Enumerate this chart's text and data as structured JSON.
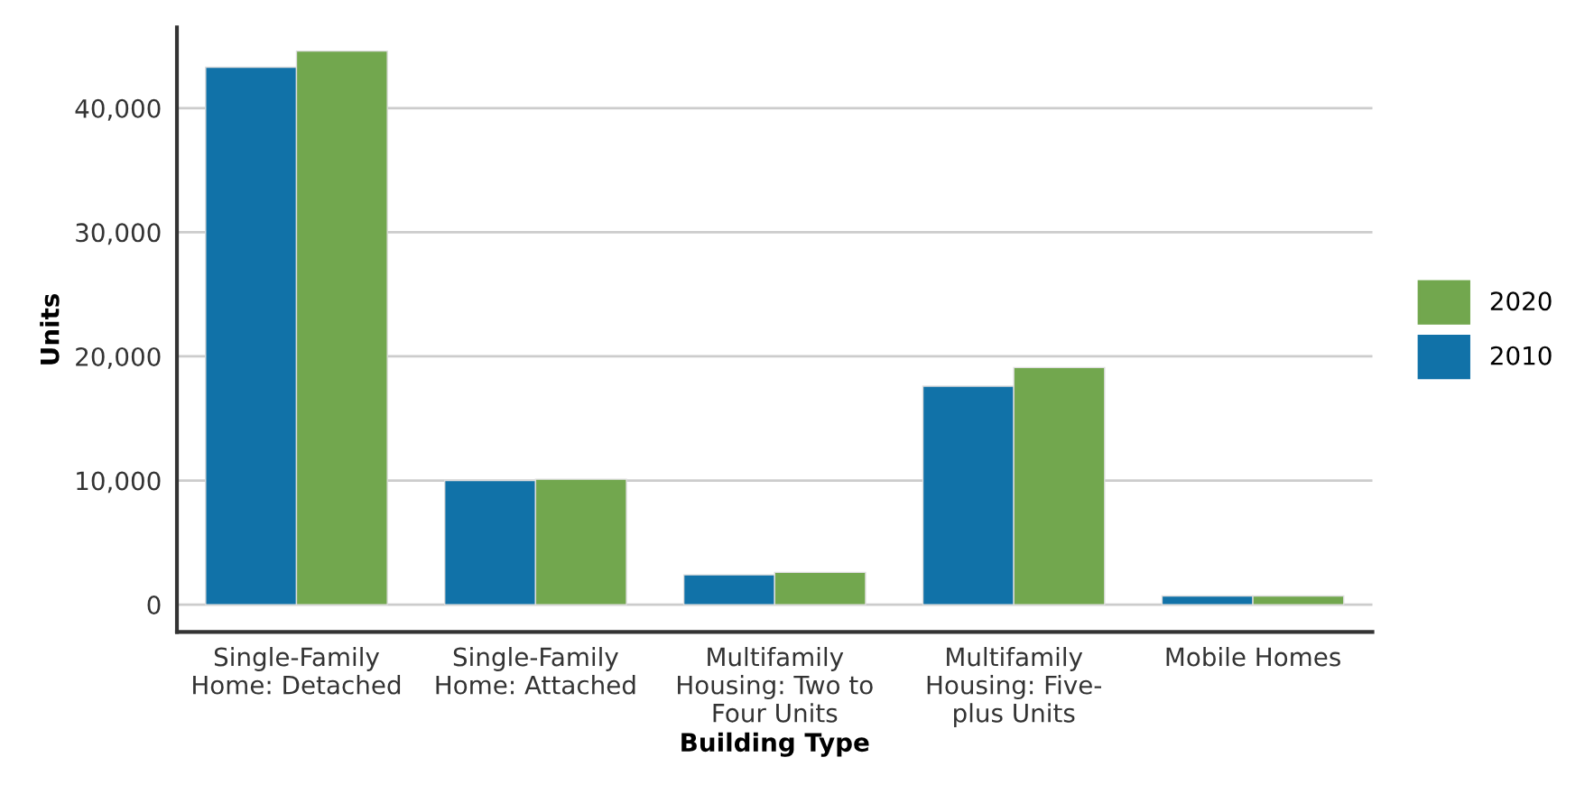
{
  "chart_data": {
    "type": "bar",
    "xlabel": "Building Type",
    "ylabel": "Units",
    "categories": [
      "Single-Family\nHome: Detached",
      "Single-Family\nHome: Attached",
      "Multifamily\nHousing: Two to\nFour Units",
      "Multifamily\nHousing: Five-\nplus Units",
      "Mobile Homes"
    ],
    "series": [
      {
        "name": "2010",
        "color": "#1172a8",
        "values": [
          43300,
          10000,
          2400,
          17600,
          700
        ]
      },
      {
        "name": "2020",
        "color": "#72a74e",
        "values": [
          44600,
          10100,
          2600,
          19100,
          700
        ]
      }
    ],
    "ylim": [
      -2200,
      46500
    ],
    "yticks": [
      0,
      {
        "value": 10000,
        "label": "10,000"
      },
      {
        "value": 20000,
        "label": "20,000"
      },
      {
        "value": 30000,
        "label": "30,000"
      },
      {
        "value": 40000,
        "label": "40,000"
      }
    ],
    "grid": "y",
    "legend": "right"
  }
}
